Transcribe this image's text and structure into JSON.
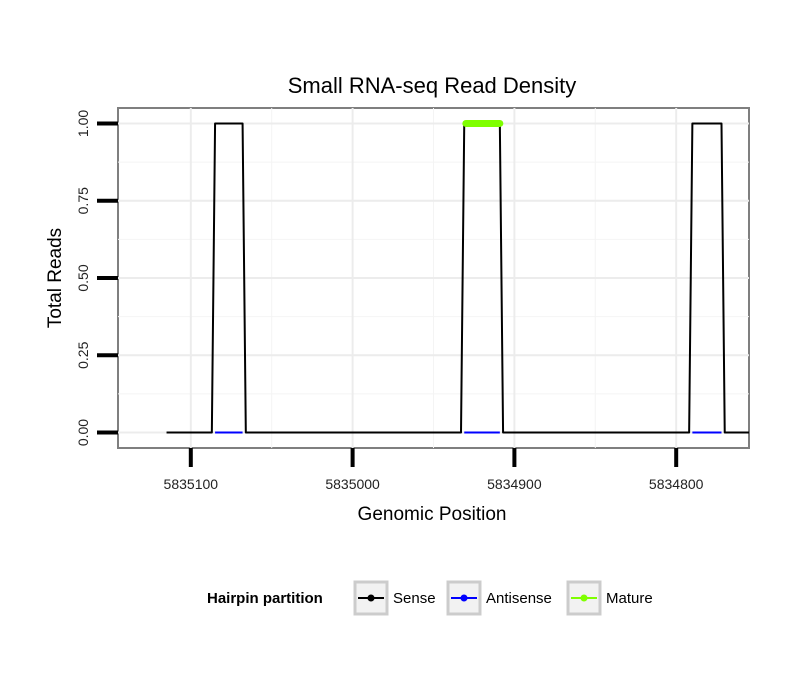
{
  "chart_data": {
    "type": "line",
    "title": "Small RNA-seq Read Density",
    "xlabel": "Genomic Position",
    "ylabel": "Total Reads",
    "x_reversed": true,
    "xlim": [
      5835145,
      5834755
    ],
    "ylim": [
      -0.05,
      1.05
    ],
    "x_ticks": [
      5835100,
      5835000,
      5834900,
      5834800
    ],
    "x_tick_labels": [
      "5835100",
      "5835000",
      "5834900",
      "5834800"
    ],
    "y_ticks": [
      0,
      0.25,
      0.5,
      0.75,
      1.0
    ],
    "y_tick_labels": [
      "0.00",
      "0.25",
      "0.50",
      "0.75",
      "1.00"
    ],
    "grid": true,
    "series": [
      {
        "name": "Sense",
        "color": "#000000",
        "x": [
          5835115,
          5835087,
          5835085,
          5835068,
          5835066,
          5834933,
          5834931,
          5834909,
          5834907,
          5834792,
          5834790,
          5834772,
          5834770,
          5834755
        ],
        "y": [
          0,
          0,
          1,
          1,
          0,
          0,
          1,
          1,
          0,
          0,
          1,
          1,
          0,
          0
        ]
      },
      {
        "name": "Antisense",
        "color": "#0000ff",
        "segments": [
          {
            "x": [
              5835085,
              5835068
            ],
            "y": [
              0,
              0
            ]
          },
          {
            "x": [
              5834931,
              5834909
            ],
            "y": [
              0,
              0
            ]
          },
          {
            "x": [
              5834790,
              5834772
            ],
            "y": [
              0,
              0
            ]
          }
        ]
      },
      {
        "name": "Mature",
        "color": "#7fff00",
        "segments": [
          {
            "x": [
              5834930,
              5834909
            ],
            "y": [
              1,
              1
            ]
          }
        ]
      }
    ],
    "legend": {
      "position": "bottom",
      "title": "Hairpin partition",
      "entries": [
        {
          "label": "Sense",
          "color": "#000000"
        },
        {
          "label": "Antisense",
          "color": "#0000ff"
        },
        {
          "label": "Mature",
          "color": "#7fff00"
        }
      ]
    }
  }
}
